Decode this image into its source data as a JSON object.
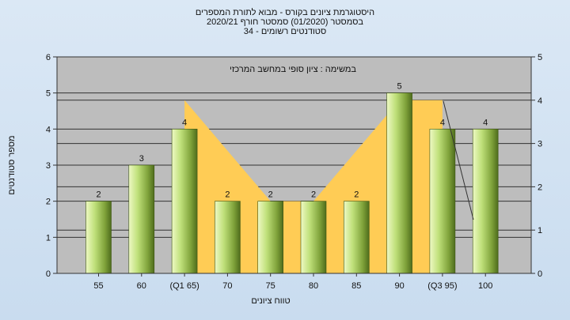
{
  "chart_data": {
    "type": "bar",
    "title_lines": [
      "היסטוגרמת ציונים בקורס - מבוא לתורת המספרים",
      "בסמסטר  (01/2020)  סמסטר חורף  2020/21",
      "34 - סטודנטים רשומים"
    ],
    "annotation": "במשימה : ציון סופי במחשב המרכזי",
    "xlabel": "טווח ציונים",
    "ylabel": "מספר סטודנטים",
    "categories": [
      "55",
      "60",
      "(Q1 65)",
      "70",
      "75",
      "80",
      "85",
      "90",
      "(Q3 95)",
      "100"
    ],
    "values": [
      2,
      3,
      4,
      2,
      2,
      2,
      2,
      5,
      4,
      4
    ],
    "area_values": [
      null,
      null,
      4.8,
      3.4,
      2,
      2,
      3.4,
      4.8,
      4.8,
      null
    ],
    "ylim": [
      0,
      6
    ],
    "y2lim": [
      0,
      5
    ],
    "yticks": [
      0,
      1,
      2,
      3,
      4,
      5,
      6
    ],
    "y2ticks": [
      0,
      1,
      2,
      3,
      4,
      5
    ],
    "grid": true,
    "colors": {
      "plot_bg": "#bdbdbd",
      "area": "#ffcc55",
      "bar_light": "#d2ec8a",
      "bar_dark": "#5e7f22"
    }
  }
}
